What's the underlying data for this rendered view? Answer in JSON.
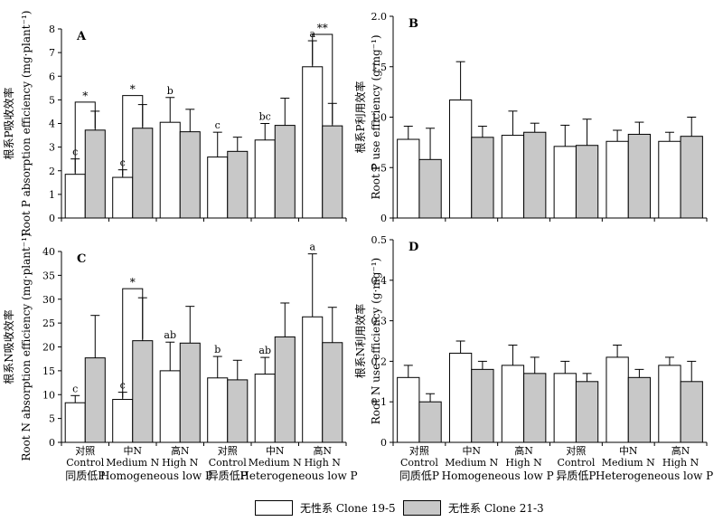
{
  "legend": [
    "无性系 Clone 19-5",
    "无性系 Clone 21-3"
  ],
  "colors": {
    "clone_19_5": "#ffffff",
    "clone_21_3": "#c8c8c8",
    "axis": "#000000"
  },
  "x_groups": [
    {
      "cn": "对照",
      "en": "Control"
    },
    {
      "cn": "中N",
      "en": "Medium N"
    },
    {
      "cn": "高N",
      "en": "High N"
    },
    {
      "cn": "对照",
      "en": "Control"
    },
    {
      "cn": "中N",
      "en": "Medium N"
    },
    {
      "cn": "高N",
      "en": "High N"
    }
  ],
  "treatment_labels": [
    {
      "cn": "同质低P",
      "en": "Homogeneous low P"
    },
    {
      "cn": "异质低P",
      "en": "Heterogeneous low P"
    }
  ],
  "chart_data": [
    {
      "panel": "A",
      "type": "bar",
      "ylabel_cn": "根系P吸收效率",
      "ylabel_en": "Root P absorption efficiency (mg·plant⁻¹)",
      "ylim": [
        0,
        8
      ],
      "yticks": [
        "0",
        "1",
        "2",
        "3",
        "4",
        "5",
        "6",
        "7",
        "8"
      ],
      "series": [
        {
          "name": "无性系 Clone 19-5",
          "values": [
            1.85,
            1.72,
            4.05,
            2.58,
            3.3,
            6.4
          ],
          "errors": [
            0.65,
            0.32,
            1.05,
            1.05,
            0.7,
            1.1
          ]
        },
        {
          "name": "无性系 Clone 21-3",
          "values": [
            3.72,
            3.8,
            3.65,
            2.82,
            3.92,
            3.9
          ],
          "errors": [
            0.8,
            1.0,
            0.95,
            0.6,
            1.15,
            0.95
          ]
        }
      ],
      "letters": [
        "c",
        "c",
        "b",
        "c",
        "bc",
        "a"
      ],
      "significance": [
        {
          "group": 0,
          "mark": "*"
        },
        {
          "group": 1,
          "mark": "*"
        },
        {
          "group": 5,
          "mark": "**"
        }
      ]
    },
    {
      "panel": "B",
      "type": "bar",
      "ylabel_cn": "根系P利用效率",
      "ylabel_en": "Root P use efficiency (g·mg⁻¹)",
      "ylim": [
        0,
        2.0
      ],
      "yticks": [
        "0",
        "0.5",
        "1.0",
        "1.5",
        "2.0"
      ],
      "series": [
        {
          "name": "无性系 Clone 19-5",
          "values": [
            0.78,
            1.17,
            0.82,
            0.71,
            0.76,
            0.76
          ],
          "errors": [
            0.13,
            0.38,
            0.24,
            0.21,
            0.11,
            0.09
          ]
        },
        {
          "name": "无性系 Clone 21-3",
          "values": [
            0.58,
            0.8,
            0.85,
            0.72,
            0.83,
            0.81
          ],
          "errors": [
            0.31,
            0.11,
            0.09,
            0.26,
            0.12,
            0.19
          ]
        }
      ],
      "letters": [],
      "significance": []
    },
    {
      "panel": "C",
      "type": "bar",
      "ylabel_cn": "根系N吸收效率",
      "ylabel_en": "Root N absorption efficiency (mg·plant⁻¹)",
      "ylim": [
        0,
        40
      ],
      "yticks": [
        "0",
        "5",
        "10",
        "15",
        "20",
        "25",
        "30",
        "35",
        "40"
      ],
      "series": [
        {
          "name": "无性系 Clone 19-5",
          "values": [
            8.3,
            9.0,
            15.0,
            13.5,
            14.3,
            26.3
          ],
          "errors": [
            1.5,
            1.5,
            6.0,
            4.5,
            3.5,
            13.2
          ]
        },
        {
          "name": "无性系 Clone 21-3",
          "values": [
            17.7,
            21.3,
            20.8,
            13.1,
            22.1,
            20.9
          ],
          "errors": [
            8.9,
            9.0,
            7.7,
            4.1,
            7.1,
            7.4
          ]
        }
      ],
      "letters": [
        "c",
        "c",
        "ab",
        "b",
        "ab",
        "a"
      ],
      "significance": [
        {
          "group": 1,
          "mark": "*"
        }
      ]
    },
    {
      "panel": "D",
      "type": "bar",
      "ylabel_cn": "根系N利用效率",
      "ylabel_en": "Root N use efficiency (g·mg⁻¹)",
      "ylim": [
        0,
        0.5
      ],
      "yticks": [
        "0",
        "0.1",
        "0.2",
        "0.3",
        "0.4",
        "0.5"
      ],
      "series": [
        {
          "name": "无性系 Clone 19-5",
          "values": [
            0.16,
            0.22,
            0.19,
            0.17,
            0.21,
            0.19
          ],
          "errors": [
            0.03,
            0.03,
            0.05,
            0.03,
            0.03,
            0.02
          ]
        },
        {
          "name": "无性系 Clone 21-3",
          "values": [
            0.1,
            0.18,
            0.17,
            0.15,
            0.16,
            0.15
          ],
          "errors": [
            0.02,
            0.02,
            0.04,
            0.02,
            0.02,
            0.05
          ]
        }
      ],
      "letters": [],
      "significance": []
    }
  ]
}
